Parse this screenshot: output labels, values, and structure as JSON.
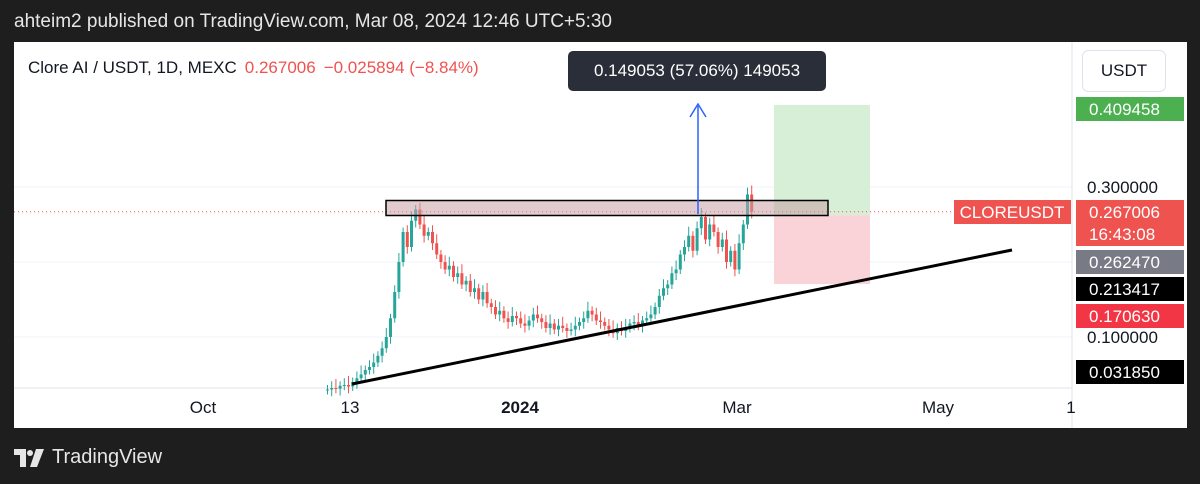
{
  "header": {
    "published": "ahteim2 published on TradingView.com, Mar 08, 2024 12:46 UTC+5:30"
  },
  "symbol": {
    "name": "Clore AI / USDT, 1D, MEXC",
    "price": "0.267006",
    "change": "−0.025894 (−8.84%)"
  },
  "tooltip": "0.149053 (57.06%) 149053",
  "currency_button": "USDT",
  "footer": {
    "brand": "TradingView",
    "logo_icon": "tradingview-logo-icon"
  },
  "colors": {
    "up": "#26a69a",
    "down": "#ef5350",
    "profit_zone": "#d6efd6",
    "loss_zone": "#fad3d8",
    "arrow": "#2962ff"
  },
  "chart_data": {
    "type": "candlestick",
    "symbol": "CLOREUSDT",
    "x_ticks": [
      "Oct",
      "13",
      "2024",
      "Mar",
      "May",
      "1"
    ],
    "y_ticks": [
      "0.300000",
      "0.100000"
    ],
    "price_labels": [
      {
        "value": "0.409458",
        "color": "#4caf50",
        "text_color": "#ffffff"
      },
      {
        "value": "0.267006",
        "color": "#ef5350",
        "text_color": "#ffffff",
        "extra": "16:43:08",
        "tag": "CLOREUSDT"
      },
      {
        "value": "0.262470",
        "color": "#787b86",
        "text_color": "#ffffff"
      },
      {
        "value": "0.213417",
        "color": "#000000",
        "text_color": "#ffffff"
      },
      {
        "value": "0.170630",
        "color": "#f23645",
        "text_color": "#ffffff"
      },
      {
        "value": "0.031850",
        "color": "#000000",
        "text_color": "#ffffff"
      }
    ],
    "closes": [
      0.03,
      0.032,
      0.031,
      0.035,
      0.036,
      0.034,
      0.04,
      0.045,
      0.05,
      0.056,
      0.06,
      0.066,
      0.075,
      0.085,
      0.1,
      0.125,
      0.16,
      0.2,
      0.24,
      0.22,
      0.255,
      0.27,
      0.25,
      0.235,
      0.24,
      0.225,
      0.21,
      0.2,
      0.19,
      0.195,
      0.18,
      0.185,
      0.17,
      0.175,
      0.16,
      0.165,
      0.15,
      0.16,
      0.145,
      0.14,
      0.13,
      0.135,
      0.125,
      0.12,
      0.128,
      0.125,
      0.118,
      0.115,
      0.122,
      0.13,
      0.125,
      0.12,
      0.112,
      0.118,
      0.11,
      0.115,
      0.112,
      0.108,
      0.11,
      0.115,
      0.12,
      0.125,
      0.135,
      0.13,
      0.122,
      0.12,
      0.115,
      0.11,
      0.105,
      0.112,
      0.108,
      0.112,
      0.118,
      0.12,
      0.115,
      0.122,
      0.125,
      0.13,
      0.14,
      0.155,
      0.165,
      0.17,
      0.185,
      0.19,
      0.21,
      0.22,
      0.235,
      0.215,
      0.245,
      0.26,
      0.23,
      0.25,
      0.24,
      0.22,
      0.23,
      0.2,
      0.215,
      0.19,
      0.225,
      0.25,
      0.29,
      0.267
    ],
    "annotations": {
      "resistance_zone": [
        0.262,
        0.282
      ],
      "long_position": {
        "target": 0.409458,
        "entry": 0.26247,
        "stop": 0.17063
      },
      "trendline": "rising support",
      "measured_move_arrow": "0.149053 (57.06%)"
    }
  }
}
